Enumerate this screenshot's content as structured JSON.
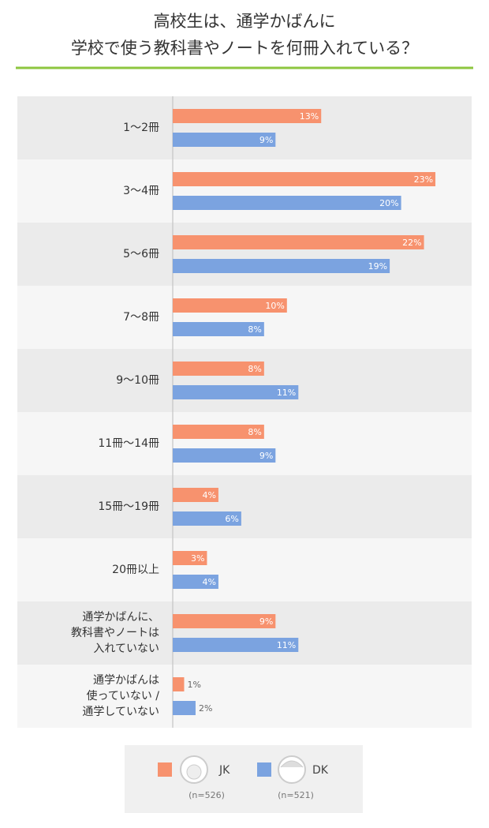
{
  "chart_data": {
    "type": "barh",
    "title": [
      "高校生は、通学かばんに",
      "学校で使う教科書やノートを何冊入れている？"
    ],
    "categories": [
      [
        "1〜2冊"
      ],
      [
        "3〜4冊"
      ],
      [
        "5〜6冊"
      ],
      [
        "7〜8冊"
      ],
      [
        "9〜10冊"
      ],
      [
        "11冊〜14冊"
      ],
      [
        "15冊〜19冊"
      ],
      [
        "20冊以上"
      ],
      [
        "通学かばんに、",
        "教科書やノートは",
        "入れていない"
      ],
      [
        "通学かばんは",
        "使っていない /",
        "通学していない"
      ]
    ],
    "series": [
      {
        "name": "JK",
        "note": "(n=526)",
        "color": "#f7926e",
        "values": [
          13,
          23,
          22,
          10,
          8,
          8,
          4,
          3,
          9,
          1
        ],
        "value_labels": [
          "13%",
          "23%",
          "22%",
          "10%",
          "8%",
          "8%",
          "4%",
          "3%",
          "9%",
          "1%"
        ]
      },
      {
        "name": "DK",
        "note": "(n=521)",
        "color": "#7ba3e0",
        "values": [
          9,
          20,
          19,
          8,
          11,
          9,
          6,
          4,
          11,
          2
        ],
        "value_labels": [
          "9%",
          "20%",
          "19%",
          "8%",
          "11%",
          "9%",
          "6%",
          "4%",
          "11%",
          "2%"
        ]
      }
    ],
    "xlim": [
      0,
      25
    ]
  }
}
